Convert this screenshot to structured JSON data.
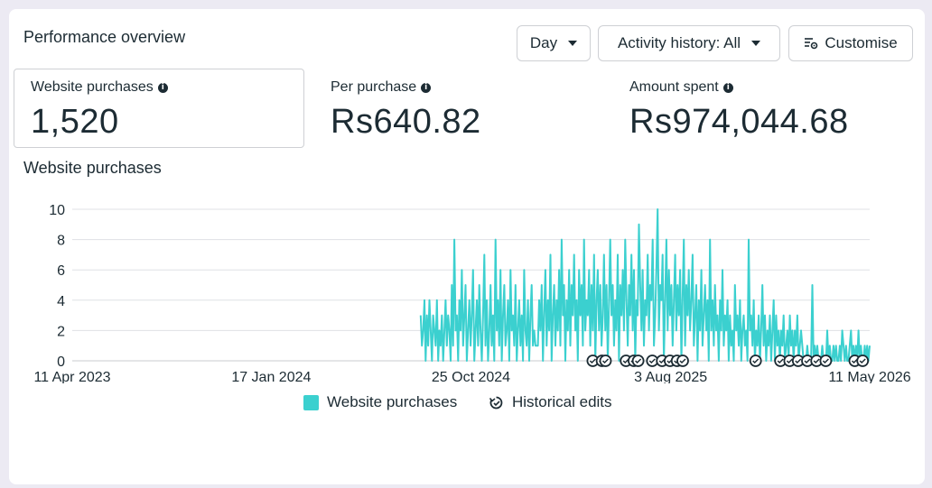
{
  "card": {
    "title": "Performance overview",
    "buttons": {
      "day": "Day",
      "activity": "Activity history: All",
      "customise": "Customise"
    }
  },
  "metrics": [
    {
      "label": "Website purchases",
      "value": "1,520"
    },
    {
      "label": "Per purchase",
      "value": "Rs640.82"
    },
    {
      "label": "Amount spent",
      "value": "Rs974,044.68"
    }
  ],
  "chart_section": {
    "title": "Website purchases"
  },
  "legend": {
    "series": "Website purchases",
    "edits": "Historical edits"
  },
  "colors": {
    "series": "#3bd0cf",
    "grid": "#dfe1e5",
    "text": "#1c2b33"
  },
  "chart_data": {
    "type": "line",
    "title": "Website purchases",
    "xlabel": "",
    "ylabel": "",
    "ylim": [
      0,
      10
    ],
    "y_ticks": [
      0,
      2,
      4,
      6,
      8,
      10
    ],
    "x_range": [
      "2023-04-11",
      "2026-05-11"
    ],
    "x_tick_labels": [
      "11 Apr 2023",
      "17 Jan 2024",
      "25 Oct 2024",
      "3 Aug 2025",
      "11 May 2026"
    ],
    "x_tick_dates": [
      "2023-04-11",
      "2024-01-17",
      "2024-10-25",
      "2025-08-03",
      "2026-05-11"
    ],
    "series": [
      {
        "name": "Website purchases",
        "x_start": "2024-08-15",
        "x_end": "2026-05-11",
        "values": [
          3,
          1,
          2,
          4,
          0,
          3,
          1,
          4,
          2,
          0,
          3,
          2,
          1,
          4,
          0,
          2,
          1,
          3,
          0,
          2,
          4,
          1,
          3,
          2,
          0,
          5,
          1,
          8,
          2,
          3,
          0,
          4,
          2,
          6,
          1,
          3,
          5,
          0,
          2,
          4,
          1,
          3,
          6,
          0,
          2,
          4,
          1,
          5,
          2,
          0,
          3,
          7,
          1,
          4,
          0,
          2,
          5,
          1,
          3,
          0,
          8,
          2,
          4,
          1,
          6,
          0,
          3,
          5,
          1,
          2,
          4,
          0,
          6,
          2,
          3,
          1,
          5,
          0,
          2,
          4,
          1,
          3,
          0,
          6,
          2,
          1,
          4,
          0,
          3,
          5,
          1,
          2,
          1,
          1,
          1,
          4,
          2,
          5,
          0,
          3,
          6,
          1,
          4,
          2,
          7,
          0,
          3,
          5,
          1,
          4,
          2,
          6,
          1,
          8,
          3,
          5,
          0,
          4,
          2,
          6,
          1,
          5,
          3,
          7,
          2,
          4,
          0,
          6,
          3,
          5,
          1,
          8,
          2,
          4,
          3,
          6,
          1,
          5,
          2,
          7,
          0,
          4,
          6,
          2,
          5,
          1,
          3,
          7,
          2,
          5,
          0,
          4,
          8,
          3,
          5,
          1,
          4,
          2,
          7,
          0,
          5,
          3,
          6,
          2,
          8,
          4,
          1,
          5,
          3,
          7,
          2,
          6,
          0,
          4,
          3,
          9,
          5,
          2,
          6,
          1,
          4,
          3,
          7,
          2,
          5,
          4,
          8,
          1,
          3,
          6,
          10,
          2,
          5,
          4,
          7,
          0,
          4,
          8,
          2,
          6,
          3,
          5,
          1,
          4,
          7,
          2,
          5,
          3,
          6,
          0,
          4,
          8,
          1,
          5,
          3,
          6,
          2,
          4,
          7,
          1,
          3,
          5,
          0,
          4,
          2,
          6,
          1,
          3,
          5,
          2,
          4,
          0,
          8,
          2,
          4,
          1,
          5,
          2,
          3,
          0,
          4,
          2,
          6,
          1,
          3,
          2,
          4,
          0,
          3,
          1,
          2,
          0,
          5,
          2,
          3,
          1,
          4,
          0,
          2,
          3,
          1,
          2,
          0,
          8,
          2,
          3,
          1,
          4,
          0,
          2,
          1,
          3,
          0,
          2,
          5,
          1,
          3,
          0,
          2,
          1,
          3,
          0,
          2,
          4,
          0,
          3,
          1,
          2,
          0,
          2,
          1,
          3,
          0,
          1,
          2,
          0,
          3,
          1,
          2,
          0,
          2,
          1,
          3,
          0,
          1,
          2,
          1,
          0,
          0,
          0,
          1,
          0,
          0,
          0,
          5,
          0,
          1,
          0,
          1,
          0,
          0,
          0,
          1,
          0,
          0,
          0,
          2,
          0,
          1,
          0,
          0,
          1,
          0,
          1,
          0,
          0,
          1,
          0,
          2,
          1,
          0,
          1,
          0,
          0,
          1,
          2,
          0,
          1,
          0,
          1,
          0,
          2,
          0,
          1,
          0,
          0,
          1,
          0,
          1,
          0,
          1
        ]
      }
    ],
    "historical_edit_dates": [
      "2025-04-15",
      "2025-04-28",
      "2025-05-03",
      "2025-06-01",
      "2025-06-12",
      "2025-06-18",
      "2025-07-08",
      "2025-07-22",
      "2025-08-02",
      "2025-08-12",
      "2025-08-20",
      "2025-12-01",
      "2026-01-05",
      "2026-01-18",
      "2026-01-30",
      "2026-02-12",
      "2026-02-25",
      "2026-03-10",
      "2026-04-20",
      "2026-05-01"
    ]
  }
}
